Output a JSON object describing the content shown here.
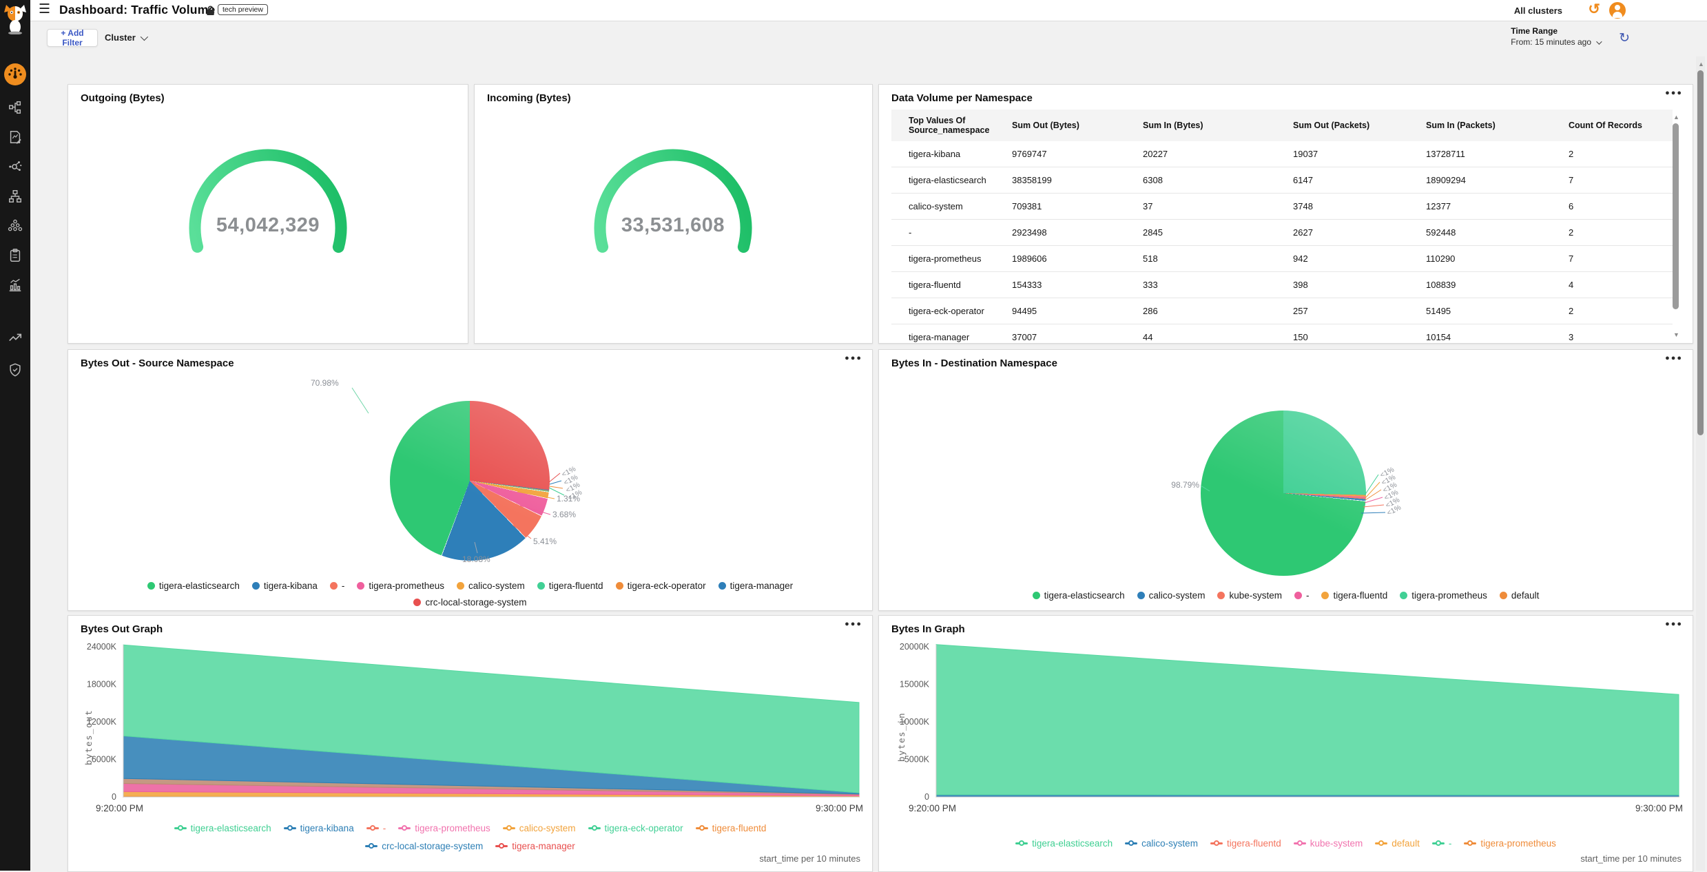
{
  "sidebar": {
    "icons": [
      {
        "name": "tigera-cat-logo"
      },
      {
        "name": "dashboard-gauge"
      },
      {
        "name": "network-topology"
      },
      {
        "name": "policy-document"
      },
      {
        "name": "service-graph"
      },
      {
        "name": "network-sitemap"
      },
      {
        "name": "cluster-nodes"
      },
      {
        "name": "compliance-clipboard"
      },
      {
        "name": "activity-chart"
      },
      {
        "name": "trend-arrow"
      },
      {
        "name": "threat-shield"
      }
    ]
  },
  "header": {
    "title": "Dashboard: Traffic Volume",
    "badge": "tech preview",
    "all_clusters_label": "All clusters"
  },
  "filter_bar": {
    "add_filter_label": "+ Add Filter",
    "cluster_label": "Cluster",
    "time_range_label": "Time Range",
    "time_range_value": "From: 15 minutes ago"
  },
  "panels": {
    "outgoing": {
      "title": "Outgoing (Bytes)",
      "value": "54,042,329"
    },
    "incoming": {
      "title": "Incoming (Bytes)",
      "value": "33,531,608"
    },
    "table": {
      "title": "Data Volume per Namespace",
      "headers": [
        "Top Values Of Source_namespace",
        "Sum Out (Bytes)",
        "Sum In (Bytes)",
        "Sum Out (Packets)",
        "Sum In (Packets)",
        "Count Of Records"
      ],
      "rows": [
        [
          "tigera-kibana",
          "9769747",
          "20227",
          "19037",
          "13728711",
          "2"
        ],
        [
          "tigera-elasticsearch",
          "38358199",
          "6308",
          "6147",
          "18909294",
          "7"
        ],
        [
          "calico-system",
          "709381",
          "37",
          "3748",
          "12377",
          "6"
        ],
        [
          "-",
          "2923498",
          "2845",
          "2627",
          "592448",
          "2"
        ],
        [
          "tigera-prometheus",
          "1989606",
          "518",
          "942",
          "110290",
          "7"
        ],
        [
          "tigera-fluentd",
          "154333",
          "333",
          "398",
          "108839",
          "4"
        ],
        [
          "tigera-eck-operator",
          "94495",
          "286",
          "257",
          "51495",
          "2"
        ],
        [
          "tigera-manager",
          "37007",
          "44",
          "150",
          "10154",
          "3"
        ]
      ]
    },
    "pie_out": {
      "title": "Bytes Out - Source Namespace",
      "pct_labels": [
        "70.98%",
        "18.08%",
        "5.41%",
        "3.68%",
        "1.31%",
        "<1%",
        "<1%",
        "<1%",
        "<1%"
      ],
      "legend_row1": [
        {
          "label": "tigera-elasticsearch",
          "color": "#2ec873"
        },
        {
          "label": "tigera-kibana",
          "color": "#2e7fb9"
        },
        {
          "label": "-",
          "color": "#f4745e"
        },
        {
          "label": "tigera-prometheus",
          "color": "#ef5f9d"
        },
        {
          "label": "calico-system",
          "color": "#f2a33c"
        },
        {
          "label": "tigera-fluentd",
          "color": "#41d095"
        },
        {
          "label": "tigera-eck-operator",
          "color": "#ef8c3a"
        },
        {
          "label": "tigera-manager",
          "color": "#2e7fb9"
        }
      ],
      "legend_row2": [
        {
          "label": "crc-local-storage-system",
          "color": "#e8504f"
        }
      ]
    },
    "pie_in": {
      "title": "Bytes In - Destination Namespace",
      "pct_labels": [
        "98.79%",
        "<1%",
        "<1%",
        "<1%",
        "<1%",
        "<1%",
        "<1%"
      ],
      "legend": [
        {
          "label": "tigera-elasticsearch",
          "color": "#2ec873"
        },
        {
          "label": "calico-system",
          "color": "#2e7fb9"
        },
        {
          "label": "kube-system",
          "color": "#f4745e"
        },
        {
          "label": "-",
          "color": "#ef5f9d"
        },
        {
          "label": "tigera-fluentd",
          "color": "#f2a33c"
        },
        {
          "label": "tigera-prometheus",
          "color": "#41d095"
        },
        {
          "label": "default",
          "color": "#ef8c3a"
        }
      ]
    },
    "graph_out": {
      "title": "Bytes Out Graph",
      "ylabel": "bytes_out",
      "footer": "start_time per 10 minutes",
      "legend_row1": [
        {
          "label": "tigera-elasticsearch",
          "color": "#3fcf92"
        },
        {
          "label": "tigera-kibana",
          "color": "#2d7fb5"
        },
        {
          "label": "-",
          "color": "#f4745e"
        },
        {
          "label": "tigera-prometheus",
          "color": "#f173ae"
        },
        {
          "label": "calico-system",
          "color": "#f2a33c"
        },
        {
          "label": "tigera-eck-operator",
          "color": "#41d095"
        },
        {
          "label": "tigera-fluentd",
          "color": "#ef8c3a"
        }
      ],
      "legend_row2": [
        {
          "label": "crc-local-storage-system",
          "color": "#2d7fb5"
        },
        {
          "label": "tigera-manager",
          "color": "#e8504f"
        }
      ]
    },
    "graph_in": {
      "title": "Bytes In Graph",
      "ylabel": "bytes_in",
      "footer": "start_time per 10 minutes",
      "legend": [
        {
          "label": "tigera-elasticsearch",
          "color": "#3fcf92"
        },
        {
          "label": "calico-system",
          "color": "#2d7fb5"
        },
        {
          "label": "tigera-fluentd",
          "color": "#f4745e"
        },
        {
          "label": "kube-system",
          "color": "#f173ae"
        },
        {
          "label": "default",
          "color": "#f2a33c"
        },
        {
          "label": "-",
          "color": "#41d095"
        },
        {
          "label": "tigera-prometheus",
          "color": "#ef8c3a"
        }
      ]
    }
  },
  "chart_data": [
    {
      "id": "gauge-out",
      "type": "gauge",
      "title": "Outgoing (Bytes)",
      "value": 54042329,
      "display_value": "54,042,329",
      "sweep_deg": 210,
      "colors": [
        "#1fbf68",
        "#5adf99"
      ]
    },
    {
      "id": "gauge-in",
      "type": "gauge",
      "title": "Incoming (Bytes)",
      "value": 33531608,
      "display_value": "33,531,608",
      "sweep_deg": 210,
      "colors": [
        "#1fbf68",
        "#5adf99"
      ]
    },
    {
      "id": "pie-out",
      "type": "pie",
      "title": "Bytes Out - Source Namespace",
      "start_deg": 96,
      "slices": [
        {
          "name": "crc-local-storage-system",
          "pct": 0.14,
          "color": "#e8504f",
          "label": "<1%"
        },
        {
          "name": "tigera-manager",
          "pct": 0.14,
          "color": "#2e7fb9",
          "label": "<1%"
        },
        {
          "name": "tigera-eck-operator",
          "pct": 0.12,
          "color": "#ef8c3a",
          "label": "<1%"
        },
        {
          "name": "tigera-fluentd",
          "pct": 0.14,
          "color": "#41d095",
          "label": "<1%"
        },
        {
          "name": "calico-system",
          "pct": 1.31,
          "color": "#f2a33c",
          "label": "1.31%"
        },
        {
          "name": "tigera-prometheus",
          "pct": 3.68,
          "color": "#ef5f9d",
          "label": "3.68%"
        },
        {
          "name": "-",
          "pct": 5.41,
          "color": "#f4745e",
          "label": "5.41%"
        },
        {
          "name": "tigera-kibana",
          "pct": 18.08,
          "color": "#2e7fb9",
          "label": "18.08%"
        },
        {
          "name": "tigera-elasticsearch",
          "pct": 70.98,
          "color": "#2ec873",
          "label": "70.98%"
        }
      ]
    },
    {
      "id": "pie-in",
      "type": "pie",
      "title": "Bytes In - Destination Namespace",
      "start_deg": 91,
      "slices": [
        {
          "name": "tigera-prometheus",
          "pct": 0.06,
          "color": "#41d095",
          "label": "<1%"
        },
        {
          "name": "default",
          "pct": 0.16,
          "color": "#ef8c3a",
          "label": "<1%"
        },
        {
          "name": "tigera-fluentd",
          "pct": 0.18,
          "color": "#f2a33c",
          "label": "<1%"
        },
        {
          "name": "-",
          "pct": 0.2,
          "color": "#ef5f9d",
          "label": "<1%"
        },
        {
          "name": "kube-system",
          "pct": 0.25,
          "color": "#f4745e",
          "label": "<1%"
        },
        {
          "name": "calico-system",
          "pct": 0.36,
          "color": "#2e7fb9",
          "label": "<1%"
        },
        {
          "name": "tigera-elasticsearch",
          "pct": 98.79,
          "color": "#2ec873",
          "label": "98.79%"
        }
      ]
    },
    {
      "id": "area-out",
      "type": "area",
      "title": "Bytes Out Graph",
      "ylabel": "bytes_out",
      "x": [
        "9:20:00 PM",
        "9:30:00 PM"
      ],
      "x_axis_note": "start_time per 10 minutes",
      "unit": "K bytes",
      "ymax": 24000,
      "yticks": [
        "0",
        "6000K",
        "12000K",
        "18000K",
        "24000K"
      ],
      "series": [
        {
          "name": "tigera-manager",
          "color": "#e8504f",
          "values": [
            120,
            60
          ]
        },
        {
          "name": "calico-system",
          "color": "#f2a33c",
          "values": [
            730,
            120
          ]
        },
        {
          "name": "tigera-prometheus",
          "color": "#ec5f9c",
          "values": [
            1300,
            210
          ]
        },
        {
          "name": "-",
          "color": "#bd8a72",
          "values": [
            800,
            80
          ]
        },
        {
          "name": "tigera-kibana",
          "color": "#2d7fb5",
          "values": [
            6800,
            180
          ]
        },
        {
          "name": "tigera-elasticsearch",
          "color": "#57d8a1",
          "values": [
            14550,
            14450
          ]
        }
      ]
    },
    {
      "id": "area-in",
      "type": "area",
      "title": "Bytes In Graph",
      "ylabel": "bytes_in",
      "x": [
        "9:20:00 PM",
        "9:30:00 PM"
      ],
      "x_axis_note": "start_time per 10 minutes",
      "unit": "K bytes",
      "ymax": 20000,
      "yticks": [
        "0",
        "5000K",
        "10000K",
        "15000K",
        "20000K"
      ],
      "series": [
        {
          "name": "tigera-prometheus",
          "color": "#f2a33c",
          "values": [
            90,
            80
          ]
        },
        {
          "name": "calico-system",
          "color": "#2d7fb5",
          "values": [
            200,
            180
          ]
        },
        {
          "name": "tigera-elasticsearch",
          "color": "#57d8a1",
          "values": [
            20010,
            13390
          ]
        }
      ]
    }
  ]
}
